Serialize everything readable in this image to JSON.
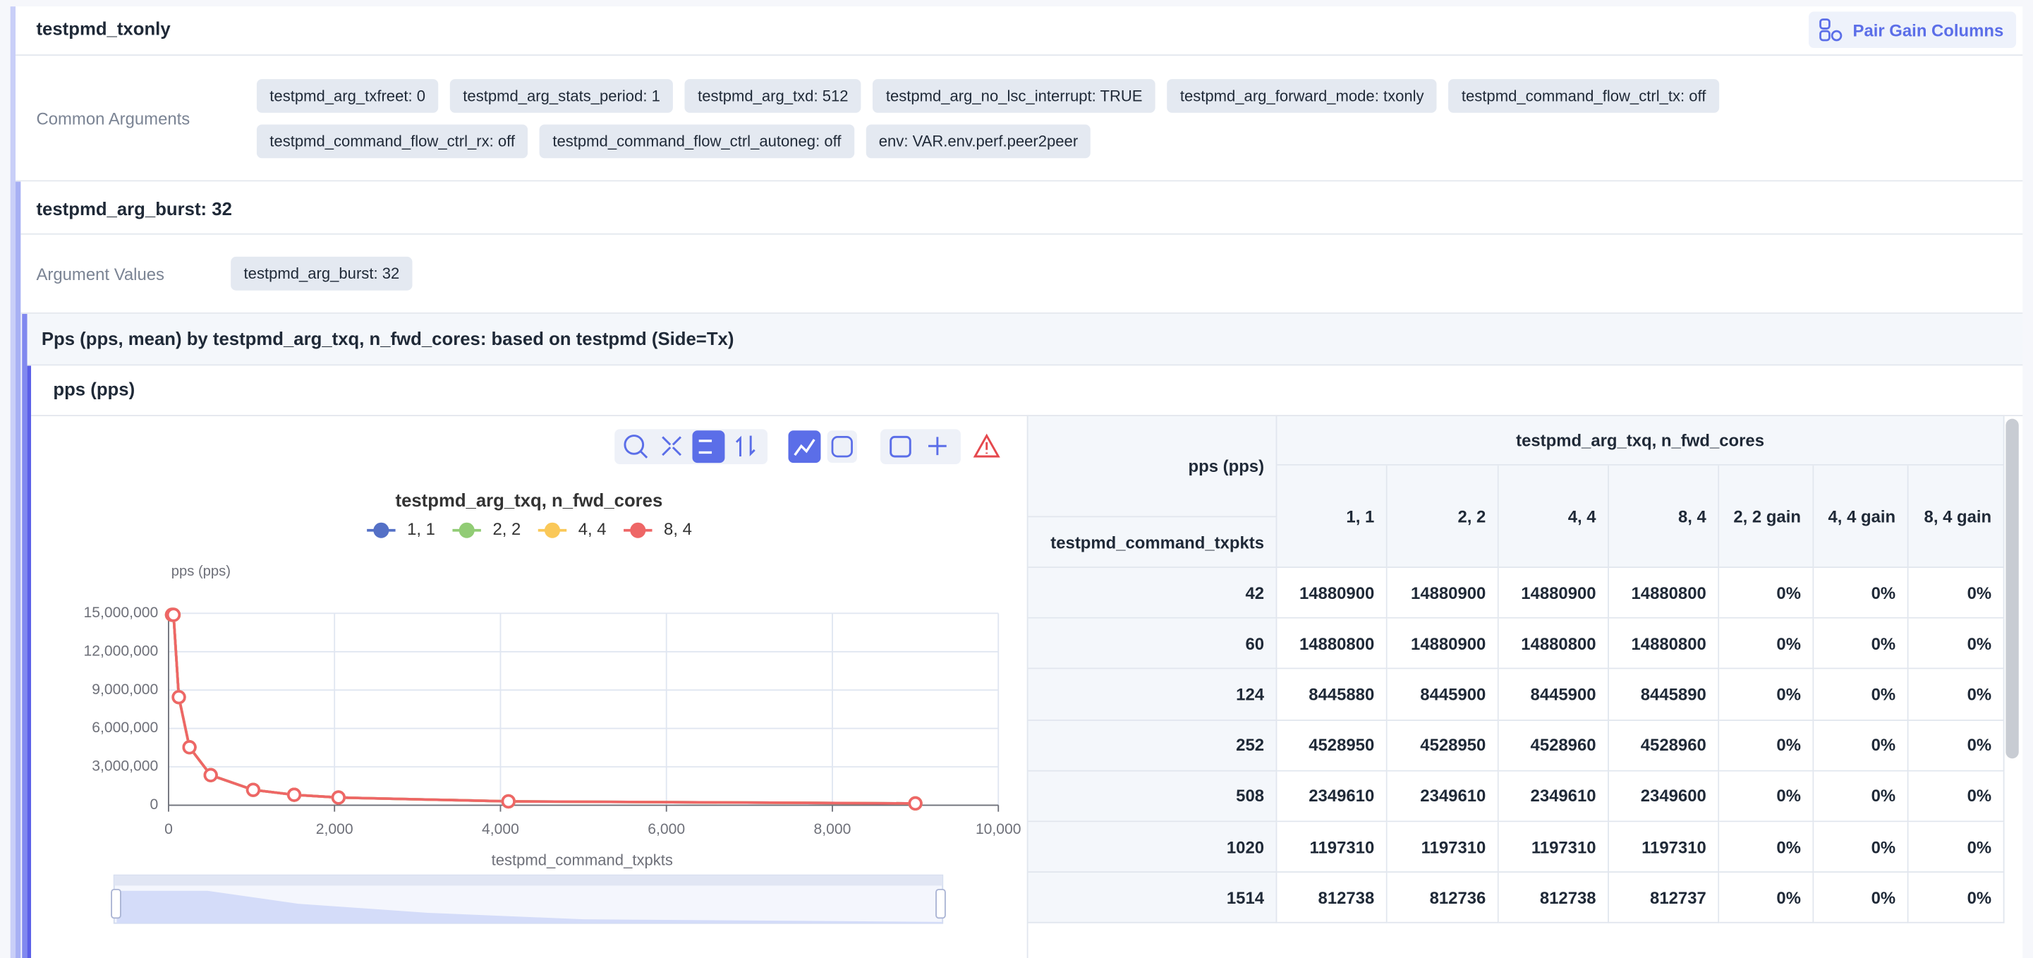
{
  "header": {
    "title": "testpmd_txonly",
    "button": "Pair Gain Columns"
  },
  "common_arguments": {
    "label": "Common Arguments",
    "tags": [
      "testpmd_arg_txfreet: 0",
      "testpmd_arg_stats_period: 1",
      "testpmd_arg_txd: 512",
      "testpmd_arg_no_lsc_interrupt: TRUE",
      "testpmd_arg_forward_mode: txonly",
      "testpmd_command_flow_ctrl_tx: off",
      "testpmd_command_flow_ctrl_rx: off",
      "testpmd_command_flow_ctrl_autoneg: off",
      "env: VAR.env.perf.peer2peer"
    ]
  },
  "group": {
    "title": "testpmd_arg_burst: 32",
    "argument_label": "Argument Values",
    "tags": [
      "testpmd_arg_burst: 32"
    ]
  },
  "section": {
    "title": "Pps (pps, mean) by testpmd_arg_txq, n_fwd_cores: based on testpmd (Side=Tx)"
  },
  "chart_data": {
    "type": "line",
    "title": "testpmd_arg_txq, n_fwd_cores",
    "y_label": "pps (pps)",
    "x_label": "testpmd_command_txpkts",
    "x": [
      42,
      60,
      124,
      252,
      508,
      1020,
      1514,
      2048,
      4096,
      9000
    ],
    "xlim": [
      0,
      10000
    ],
    "xticks": [
      0,
      {
        "value": 2000,
        "label": "2,000"
      },
      {
        "value": 4000,
        "label": "4,000"
      },
      {
        "value": 6000,
        "label": "6,000"
      },
      {
        "value": 8000,
        "label": "8,000"
      },
      {
        "value": 10000,
        "label": "10,000"
      }
    ],
    "ylim": [
      0,
      15000000
    ],
    "yticks": [
      0,
      {
        "value": 3000000,
        "label": "3,000,000"
      },
      {
        "value": 6000000,
        "label": "6,000,000"
      },
      {
        "value": 9000000,
        "label": "9,000,000"
      },
      {
        "value": 12000000,
        "label": "12,000,000"
      },
      {
        "value": 15000000,
        "label": "15,000,000"
      }
    ],
    "grid": true,
    "legend": "top",
    "series": [
      {
        "name": "1, 1",
        "color": "#5470c6",
        "values": [
          14880900,
          14880800,
          8445880,
          4528950,
          2349610,
          1197310,
          812738,
          600000,
          300000,
          137000
        ]
      },
      {
        "name": "2, 2",
        "color": "#91cc75",
        "values": [
          14880900,
          14880900,
          8445900,
          4528950,
          2349610,
          1197310,
          812736,
          600000,
          300000,
          137000
        ]
      },
      {
        "name": "4, 4",
        "color": "#fac858",
        "values": [
          14880900,
          14880800,
          8445900,
          4528960,
          2349610,
          1197310,
          812738,
          600000,
          300000,
          137000
        ]
      },
      {
        "name": "8, 4",
        "color": "#ee6666",
        "values": [
          14880800,
          14880800,
          8445890,
          4528960,
          2349600,
          1197310,
          812737,
          600000,
          300000,
          137000
        ]
      }
    ]
  },
  "table": {
    "gain_headers": [
      "2, 2 gain",
      "4, 4 gain",
      "8, 4 gain"
    ],
    "gains": [
      [
        "0%",
        "0%",
        "0%"
      ],
      [
        "0%",
        "0%",
        "0%"
      ],
      [
        "0%",
        "0%",
        "0%"
      ],
      [
        "0%",
        "0%",
        "0%"
      ],
      [
        "0%",
        "0%",
        "0%"
      ],
      [
        "0%",
        "0%",
        "0%"
      ],
      [
        "0%",
        "0%",
        "0%"
      ]
    ]
  }
}
